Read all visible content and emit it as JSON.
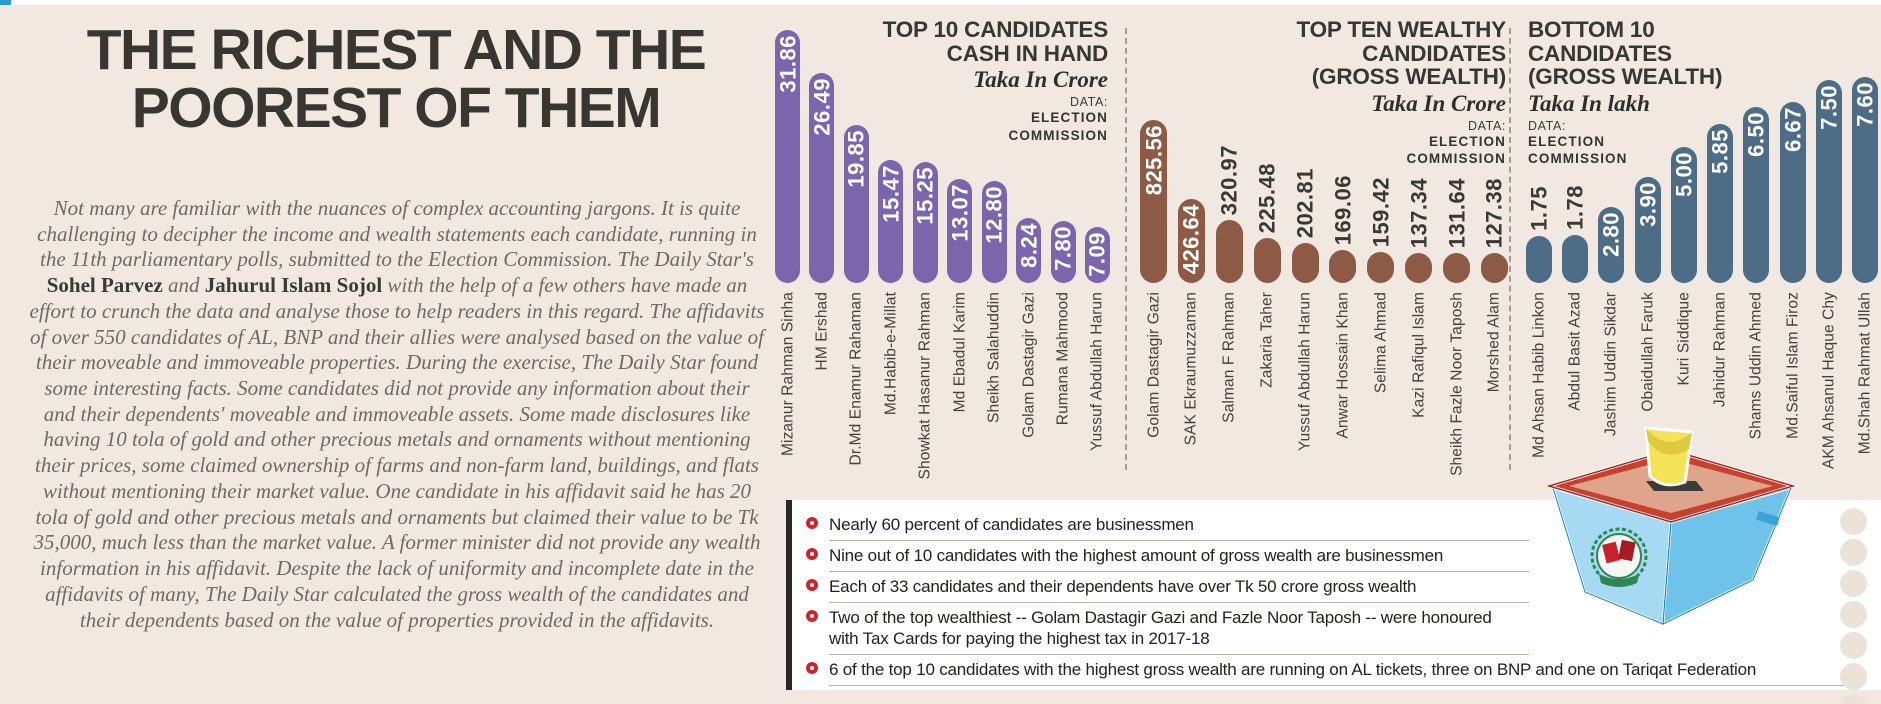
{
  "masthead": {
    "line1": "THE RICHEST AND THE",
    "line2": "POOREST OF THEM"
  },
  "intro_segments": [
    {
      "text": "Not many are familiar with the nuances of complex accounting jargons. It is quite challenging to decipher the income and wealth statements each candidate, running in the 11th parliamentary polls, submitted to the Election Commission. The Daily Star's ",
      "bold": false
    },
    {
      "text": "Sohel Parvez",
      "bold": true
    },
    {
      "text": " and ",
      "bold": false
    },
    {
      "text": "Jahurul Islam Sojol",
      "bold": true
    },
    {
      "text": " with the help of a few others have made an effort to crunch the data and analyse those to help readers in this regard. The affidavits of over 550 candidates of AL, BNP and their allies were analysed based on the value of their moveable and immoveable properties. During the exercise, The Daily Star found some interesting facts. Some candidates did not provide any information about their and their dependents' moveable and immoveable assets. Some made disclosures like having 10 tola of gold and other precious metals and ornaments without mentioning their prices, some claimed ownership of farms and non-farm land, buildings, and flats without mentioning their market value. One candidate in his affidavit said he has 20 tola of gold and other precious metals and ornaments but claimed their value to be Tk 35,000, much less than the market value. A former minister did not provide any wealth information in his affidavit. Despite the lack of uniformity and incomplete date in the affidavits of many, The Daily Star calculated the gross wealth of the candidates and their dependents based on the value of properties provided in the affidavits.",
      "bold": false
    }
  ],
  "chart_data": [
    {
      "type": "bar",
      "title_lines": [
        "TOP 10 CANDIDATES",
        "CASH IN HAND"
      ],
      "unit": "Taka In Crore",
      "source_label": "DATA:",
      "source_lines": [
        "ELECTION",
        "COMMISSION"
      ],
      "bar_color": "#7b66ae",
      "legend_position": "none",
      "categories": [
        "Mizanur Rahman Sinha",
        "HM Ershad",
        "Dr.Md Enamur Rahaman",
        "Md.Habib-e-Millat",
        "Showkat Hasanur Rahman",
        "Md Ebadul Karim",
        "Sheikh Salahuddin",
        "Golam Dastagir Gazi",
        "Rumana Mahmood",
        "Yussuf Abdullah Harun"
      ],
      "values": [
        31.86,
        26.49,
        19.85,
        15.47,
        15.25,
        13.07,
        12.8,
        8.24,
        7.8,
        7.09
      ],
      "value_label_pos": [
        "in",
        "in",
        "in",
        "in",
        "in",
        "in",
        "in",
        "in",
        "in",
        "in"
      ]
    },
    {
      "type": "bar",
      "title_lines": [
        "TOP TEN WEALTHY CANDIDATES",
        "(GROSS WEALTH)"
      ],
      "unit": "Taka In Crore",
      "source_label": "DATA:",
      "source_lines": [
        "ELECTION",
        "COMMISSION"
      ],
      "bar_color": "#8d5a45",
      "legend_position": "none",
      "categories": [
        "Golam Dastagir Gazi",
        "SAK Ekraumuzzaman",
        "Salman F Rahman",
        "Zakaria Taher",
        "Yussuf Abdullah Harun",
        "Anwar Hossain Khan",
        "Selima Ahmad",
        "Kazi Rafiqul Islam",
        "Sheikh Fazle Noor Taposh",
        "Morshed Alam"
      ],
      "values": [
        825.56,
        426.64,
        320.97,
        225.48,
        202.81,
        169.06,
        159.42,
        137.34,
        131.64,
        127.38
      ],
      "value_label_pos": [
        "in",
        "in",
        "up",
        "up",
        "up",
        "up",
        "up",
        "up",
        "up",
        "up"
      ]
    },
    {
      "type": "bar",
      "title_lines": [
        "BOTTOM 10 CANDIDATES",
        "(GROSS WEALTH)"
      ],
      "unit": "Taka In lakh",
      "source_label": "DATA:",
      "source_lines": [
        "ELECTION",
        "COMMISSION"
      ],
      "bar_color": "#4d6c86",
      "legend_position": "none",
      "categories": [
        "Md Ahsan Habib Linkon",
        "Abdul Basit Azad",
        "Jashim Uddin Sikdar",
        "Obaidullah Faruk",
        "Kuri Siddique",
        "Jahidur Rahman",
        "Shams Uddin Ahmed",
        "Md.Saiful Islam Firoz",
        "AKM Ahsanul Haque Chy",
        "Md.Shah Rahmat Ullah"
      ],
      "values": [
        1.75,
        1.78,
        2.8,
        3.9,
        5.0,
        5.85,
        6.5,
        6.67,
        7.5,
        7.6
      ],
      "value_label_pos": [
        "up",
        "up",
        "in",
        "in",
        "in",
        "in",
        "in",
        "in",
        "in",
        "in"
      ]
    }
  ],
  "facts": [
    {
      "lines": [
        "Nearly 60 percent of candidates are businessmen"
      ]
    },
    {
      "lines": [
        "Nine out of 10 candidates with the highest amount of gross wealth are businessmen"
      ]
    },
    {
      "lines": [
        "Each of 33 candidates and their dependents have over Tk 50 crore gross wealth"
      ]
    },
    {
      "lines": [
        "Two of the top wealthiest -- Golam Dastagir Gazi and Fazle Noor Taposh -- were honoured",
        "with Tax Cards for paying the highest tax in 2017-18"
      ]
    },
    {
      "lines": [
        "6 of the top 10 candidates with the highest gross wealth are running on AL tickets, three on BNP and one on Tariqat Federation"
      ]
    }
  ],
  "colors": {
    "background": "#f1e9e1",
    "panel": "#ffffff",
    "bullet_red": "#d5212a",
    "purple_bar": "#7b66ae",
    "brown_bar": "#8d5a45",
    "slate_bar": "#4d6c86"
  },
  "icons": {
    "bullet": "ring-bullet-icon",
    "ballot_box": "ballot-box-illustration"
  }
}
